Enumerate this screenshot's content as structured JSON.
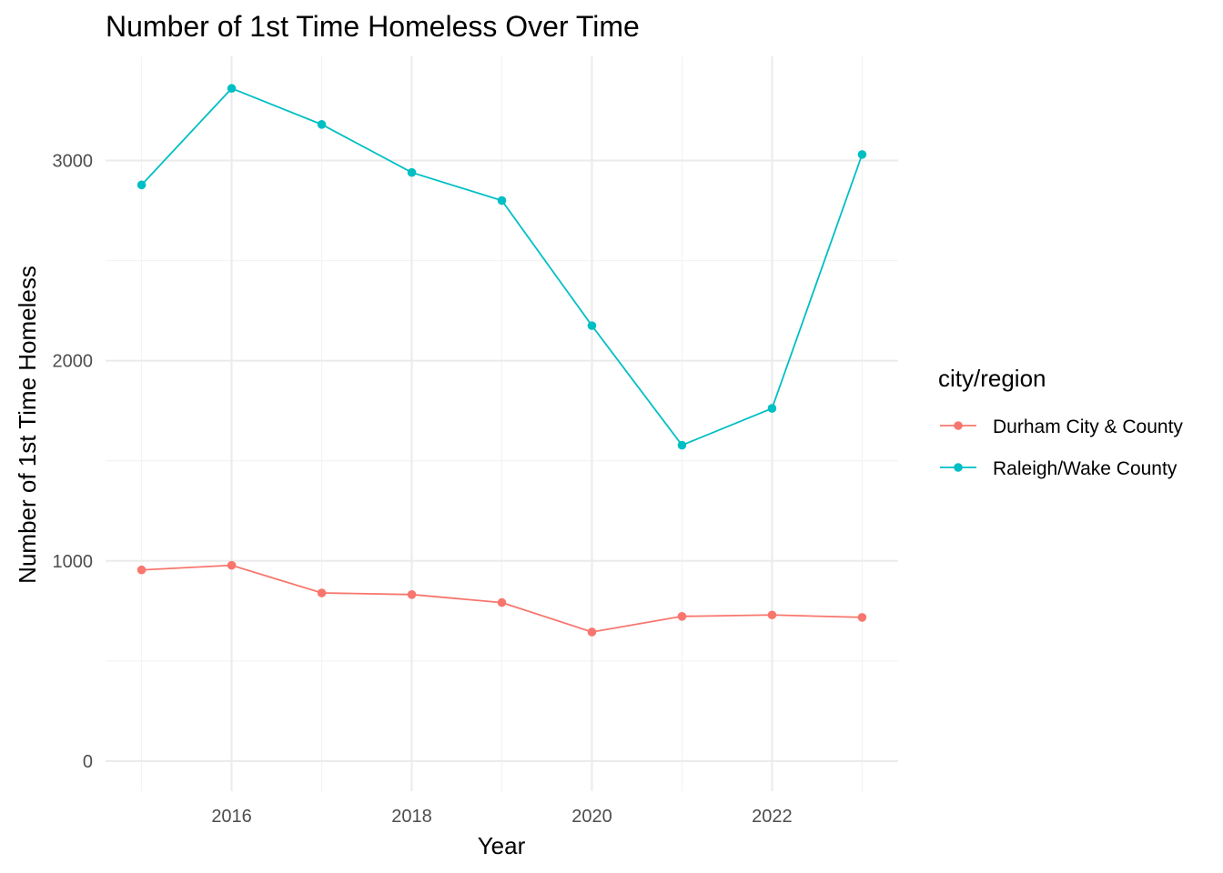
{
  "chart_data": {
    "type": "line",
    "title": "Number of 1st Time Homeless Over Time",
    "xlabel": "Year",
    "ylabel": "Number of 1st Time Homeless",
    "x": [
      2015,
      2016,
      2017,
      2018,
      2019,
      2020,
      2021,
      2022,
      2023
    ],
    "x_ticks": [
      "2016",
      "2018",
      "2020",
      "2022"
    ],
    "y_ticks": [
      "0",
      "1000",
      "2000",
      "3000"
    ],
    "xlim": [
      2014.6,
      2023.4
    ],
    "ylim": [
      -150,
      3520
    ],
    "grid": true,
    "legend": {
      "title": "city/region",
      "position": "right"
    },
    "series": [
      {
        "name": "Durham City & County",
        "color": "#F8766D",
        "values": [
          955,
          978,
          840,
          832,
          792,
          645,
          723,
          730,
          718
        ]
      },
      {
        "name": "Raleigh/Wake County",
        "color": "#00BFC4",
        "values": [
          2878,
          3360,
          3180,
          2940,
          2800,
          2175,
          1578,
          1762,
          3030
        ]
      }
    ]
  }
}
